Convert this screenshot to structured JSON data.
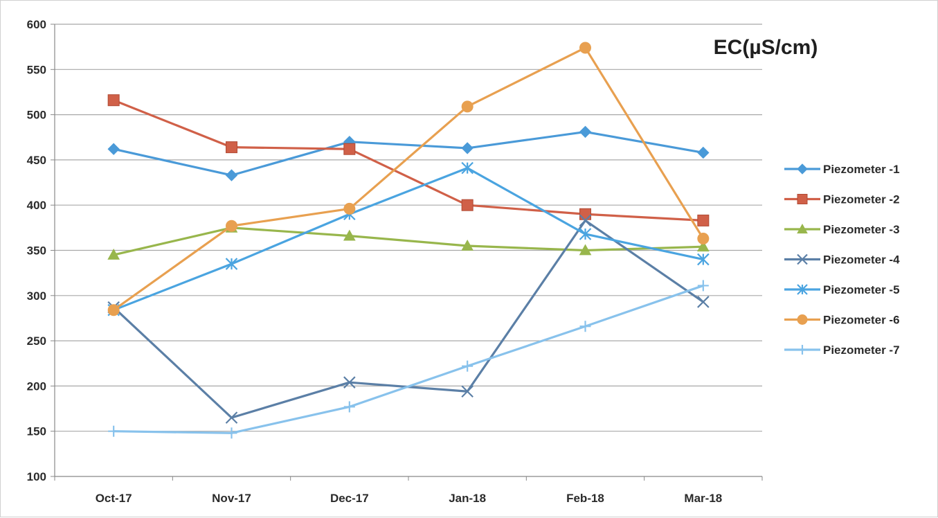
{
  "chart_data": {
    "type": "line",
    "title": "EC(µS/cm)",
    "xlabel": "",
    "ylabel": "",
    "ylim": [
      100,
      600
    ],
    "yticks": [
      100,
      150,
      200,
      250,
      300,
      350,
      400,
      450,
      500,
      550,
      600
    ],
    "grid": true,
    "legend_position": "right",
    "categories": [
      "Oct-17",
      "Nov-17",
      "Dec-17",
      "Jan-18",
      "Feb-18",
      "Mar-18"
    ],
    "series": [
      {
        "name": "Piezometer -1",
        "values": [
          462,
          433,
          470,
          463,
          481,
          458
        ],
        "color": "#4a9ad8",
        "marker": "diamond"
      },
      {
        "name": "Piezometer -2",
        "values": [
          516,
          464,
          462,
          400,
          390,
          383
        ],
        "color": "#d06048",
        "marker": "square"
      },
      {
        "name": "Piezometer -3",
        "values": [
          345,
          375,
          366,
          355,
          350,
          354
        ],
        "color": "#98b64c",
        "marker": "triangle"
      },
      {
        "name": "Piezometer -4",
        "values": [
          287,
          165,
          204,
          194,
          383,
          293
        ],
        "color": "#5b7fa6",
        "marker": "x"
      },
      {
        "name": "Piezometer -5",
        "values": [
          284,
          335,
          390,
          441,
          368,
          340
        ],
        "color": "#4aa4e0",
        "marker": "asterisk"
      },
      {
        "name": "Piezometer -6",
        "values": [
          284,
          377,
          396,
          509,
          574,
          363
        ],
        "color": "#e8a050",
        "marker": "circle"
      },
      {
        "name": "Piezometer -7",
        "values": [
          150,
          148,
          177,
          222,
          266,
          311
        ],
        "color": "#88c2ec",
        "marker": "plus"
      }
    ]
  }
}
